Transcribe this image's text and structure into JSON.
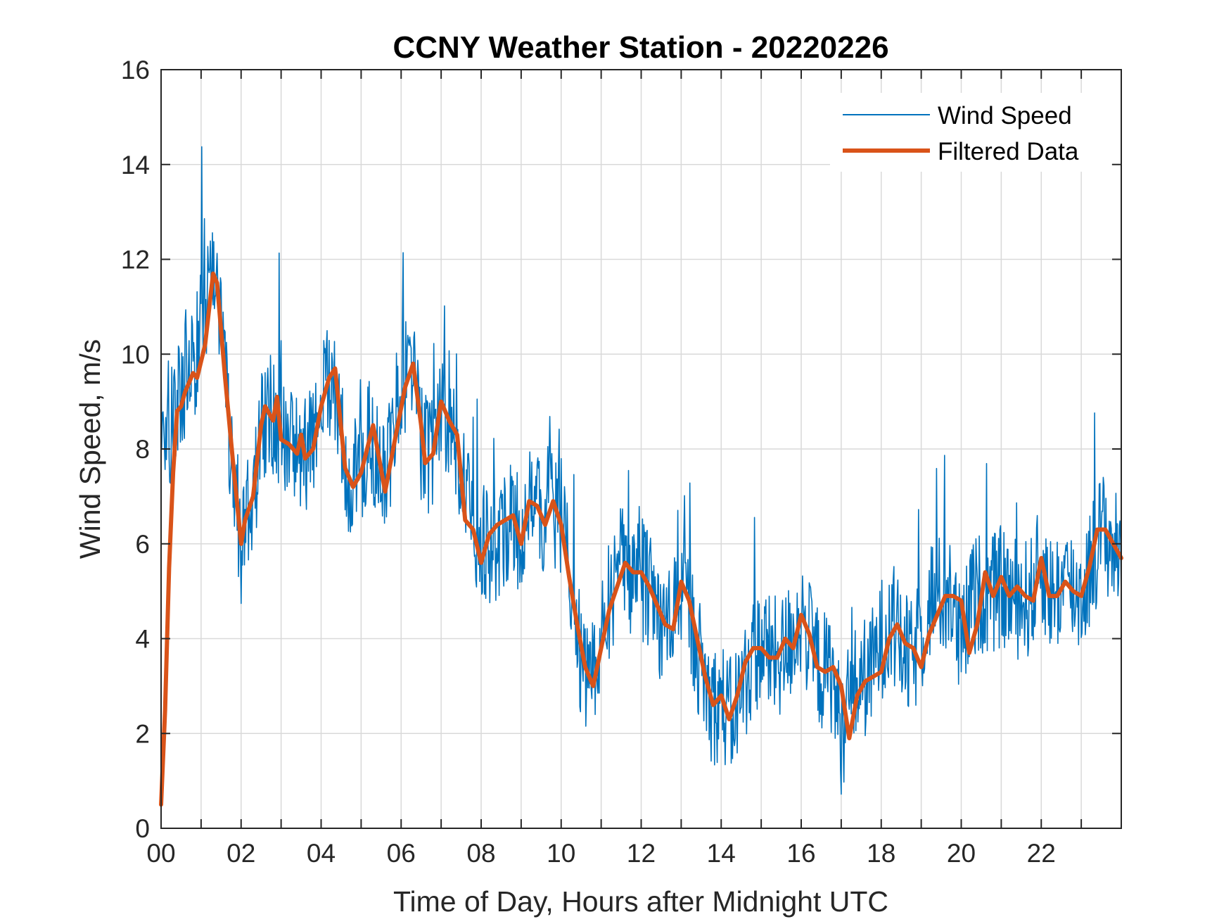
{
  "chart_data": {
    "type": "line",
    "title": "CCNY Weather Station - 20220226",
    "xlabel": "Time of Day, Hours after Midnight UTC",
    "ylabel": "Wind Speed, m/s",
    "xlim": [
      0,
      24
    ],
    "ylim": [
      0,
      16
    ],
    "x_ticks": [
      0,
      2,
      4,
      6,
      8,
      10,
      12,
      14,
      16,
      18,
      20,
      22
    ],
    "x_tick_labels": [
      "00",
      "02",
      "04",
      "06",
      "08",
      "10",
      "12",
      "14",
      "16",
      "18",
      "20",
      "22"
    ],
    "y_ticks": [
      0,
      2,
      4,
      6,
      8,
      10,
      12,
      14,
      16
    ],
    "y_tick_labels": [
      "0",
      "2",
      "4",
      "6",
      "8",
      "10",
      "12",
      "14",
      "16"
    ],
    "grid": true,
    "x_grid_step": 1,
    "legend_position": "top-right",
    "series": [
      {
        "name": "Wind Speed",
        "color": "#0072BD",
        "style": "thin-noisy",
        "x": [
          0,
          0.25,
          0.5,
          0.75,
          1,
          1.25,
          1.5,
          1.75,
          2,
          2.25,
          2.5,
          2.75,
          3,
          3.25,
          3.5,
          3.75,
          4,
          4.25,
          4.5,
          4.75,
          5,
          5.25,
          5.5,
          5.75,
          6,
          6.25,
          6.5,
          6.75,
          7,
          7.25,
          7.5,
          7.75,
          8,
          8.25,
          8.5,
          8.75,
          9,
          9.25,
          9.5,
          9.75,
          10,
          10.25,
          10.5,
          10.75,
          11,
          11.25,
          11.5,
          11.75,
          12,
          12.25,
          12.5,
          12.75,
          13,
          13.25,
          13.5,
          13.75,
          14,
          14.25,
          14.5,
          14.75,
          15,
          15.25,
          15.5,
          15.75,
          16,
          16.25,
          16.5,
          16.75,
          17,
          17.25,
          17.5,
          17.75,
          18,
          18.25,
          18.5,
          18.75,
          19,
          19.25,
          19.5,
          19.75,
          20,
          20.25,
          20.5,
          20.75,
          21,
          21.25,
          21.5,
          21.75,
          22,
          22.25,
          22.5,
          22.75,
          23,
          23.25,
          23.5,
          23.75,
          24
        ],
        "values": [
          9.0,
          8.5,
          9.2,
          9.6,
          10.5,
          11.8,
          10.5,
          8.0,
          6.0,
          6.7,
          8.4,
          8.8,
          8.4,
          8.0,
          8.1,
          7.9,
          8.8,
          9.6,
          8.2,
          7.2,
          7.6,
          8.4,
          7.2,
          8.0,
          9.4,
          9.8,
          8.2,
          7.8,
          8.8,
          8.6,
          7.5,
          6.4,
          6.0,
          5.8,
          6.3,
          6.6,
          6.2,
          6.9,
          6.5,
          6.9,
          6.6,
          5.0,
          3.5,
          3.0,
          4.2,
          5.0,
          5.5,
          5.4,
          5.3,
          4.8,
          4.3,
          4.4,
          5.1,
          4.4,
          3.4,
          2.6,
          2.7,
          2.3,
          2.9,
          3.5,
          3.9,
          3.6,
          3.6,
          4.0,
          4.5,
          3.8,
          3.3,
          3.3,
          2.0,
          2.9,
          3.1,
          3.3,
          4.0,
          4.3,
          3.8,
          3.5,
          4.1,
          4.9,
          4.9,
          4.9,
          3.7,
          4.8,
          5.0,
          4.9,
          5.1,
          4.9,
          4.8,
          4.9,
          5.6,
          4.9,
          5.1,
          5.1,
          4.9,
          5.6,
          6.3,
          6.0,
          5.7
        ],
        "noise_amplitude": 1.3
      },
      {
        "name": "Filtered Data",
        "color": "#D95319",
        "style": "thick",
        "x": [
          0,
          0.1,
          0.2,
          0.3,
          0.4,
          0.5,
          0.6,
          0.8,
          0.9,
          1.1,
          1.3,
          1.4,
          1.6,
          1.8,
          2.0,
          2.1,
          2.3,
          2.5,
          2.6,
          2.8,
          2.9,
          3.0,
          3.2,
          3.4,
          3.5,
          3.6,
          3.8,
          4.0,
          4.2,
          4.35,
          4.6,
          4.8,
          5.0,
          5.3,
          5.6,
          5.8,
          6.1,
          6.3,
          6.5,
          6.6,
          6.8,
          7.0,
          7.2,
          7.4,
          7.6,
          7.8,
          8.0,
          8.2,
          8.4,
          8.6,
          8.8,
          9.0,
          9.2,
          9.4,
          9.6,
          9.8,
          10.0,
          10.2,
          10.4,
          10.6,
          10.8,
          11.0,
          11.2,
          11.4,
          11.6,
          11.8,
          12.0,
          12.2,
          12.4,
          12.6,
          12.8,
          13.0,
          13.2,
          13.4,
          13.6,
          13.8,
          14.0,
          14.2,
          14.4,
          14.6,
          14.8,
          15.0,
          15.2,
          15.4,
          15.6,
          15.8,
          16.0,
          16.2,
          16.4,
          16.6,
          16.8,
          17.0,
          17.2,
          17.4,
          17.6,
          17.8,
          18.0,
          18.2,
          18.4,
          18.6,
          18.8,
          19.0,
          19.2,
          19.4,
          19.6,
          19.8,
          20.0,
          20.2,
          20.4,
          20.6,
          20.8,
          21.0,
          21.2,
          21.4,
          21.6,
          21.8,
          22.0,
          22.2,
          22.4,
          22.6,
          22.8,
          23.0,
          23.2,
          23.4,
          23.6,
          23.8,
          24.0
        ],
        "values": [
          0.5,
          2.5,
          5.5,
          7.5,
          8.8,
          8.9,
          9.2,
          9.6,
          9.5,
          10.2,
          11.7,
          11.5,
          9.5,
          7.7,
          6.0,
          6.5,
          7.0,
          8.5,
          8.9,
          8.6,
          9.1,
          8.2,
          8.1,
          7.9,
          8.3,
          7.8,
          8.0,
          8.9,
          9.5,
          9.7,
          7.6,
          7.2,
          7.5,
          8.5,
          7.1,
          8.0,
          9.3,
          9.8,
          8.5,
          7.7,
          7.9,
          9.0,
          8.6,
          8.3,
          6.5,
          6.3,
          5.6,
          6.2,
          6.4,
          6.5,
          6.6,
          6.0,
          6.9,
          6.8,
          6.4,
          6.9,
          6.4,
          5.3,
          4.3,
          3.4,
          3.0,
          3.8,
          4.6,
          5.1,
          5.6,
          5.4,
          5.4,
          5.1,
          4.7,
          4.3,
          4.2,
          5.2,
          4.8,
          4.0,
          3.2,
          2.6,
          2.8,
          2.3,
          2.8,
          3.5,
          3.8,
          3.8,
          3.6,
          3.6,
          4.0,
          3.8,
          4.5,
          4.1,
          3.4,
          3.3,
          3.4,
          3.0,
          1.9,
          2.8,
          3.1,
          3.2,
          3.3,
          4.0,
          4.3,
          3.9,
          3.8,
          3.4,
          4.1,
          4.5,
          4.9,
          4.9,
          4.8,
          3.7,
          4.3,
          5.4,
          4.9,
          5.3,
          4.9,
          5.1,
          4.9,
          4.8,
          5.7,
          4.9,
          4.9,
          5.2,
          5.0,
          4.9,
          5.5,
          6.3,
          6.3,
          6.0,
          5.7
        ]
      }
    ]
  }
}
